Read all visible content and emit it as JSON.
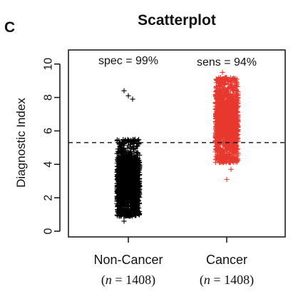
{
  "panel_letter": "C",
  "chart_data": {
    "type": "scatter",
    "title": "Scatterplot",
    "xlabel": "",
    "ylabel": "Diagnostic Index",
    "ylim": [
      0,
      10.5
    ],
    "yticks": [
      0,
      2,
      4,
      6,
      8,
      10
    ],
    "grid": false,
    "legend": "none",
    "threshold": 5.3,
    "categories": [
      {
        "label": "Non-Cancer",
        "n_prefix": "(",
        "n_var": "n",
        "n_eq": " = 1408)",
        "color": "#000000"
      },
      {
        "label": "Cancer",
        "n_prefix": "(",
        "n_var": "n",
        "n_eq": " = 1408)",
        "color": "#e8392f"
      }
    ],
    "series": [
      {
        "category": "Non-Cancer",
        "n": 1408,
        "color": "#000000",
        "marker": "+",
        "y_core_range": [
          0.9,
          5.5
        ],
        "center": 2.9,
        "outliers": [
          8.4,
          8.1,
          7.9,
          0.6
        ]
      },
      {
        "category": "Cancer",
        "n": 1408,
        "color": "#e8392f",
        "marker": "+",
        "y_core_range": [
          4.1,
          9.2
        ],
        "center": 6.5,
        "outliers": [
          9.5,
          3.1,
          3.7
        ]
      }
    ],
    "annotations": [
      {
        "text": "spec = 99%",
        "category": "Non-Cancer"
      },
      {
        "text": "sens = 94%",
        "category": "Cancer"
      }
    ]
  }
}
